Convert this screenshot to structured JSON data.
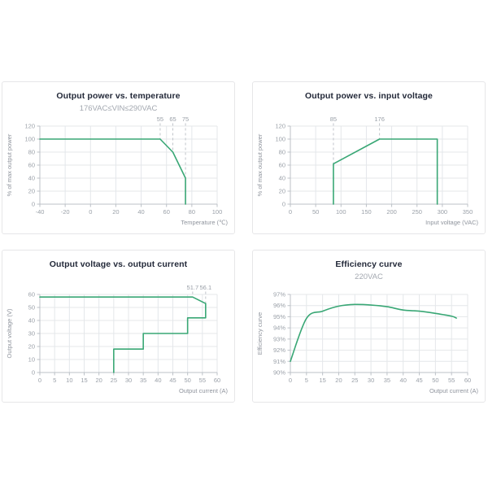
{
  "page": {
    "background": "#ffffff"
  },
  "theme": {
    "line_color": "#39a775",
    "grid_color": "#e4e7ea",
    "axis_color": "#bcc1c7",
    "tick_label_color": "#9aa0a8",
    "axis_name_color": "#8f949d",
    "marker_line_color": "#c0c4ca",
    "marker_label_color": "#9aa0a8",
    "title_color": "#232939",
    "subtitle_color": "#a3a8b0",
    "panel_border_color": "#e6e6e8",
    "panel_background": "#ffffff"
  },
  "chart_data": [
    {
      "type": "line",
      "title": "Output power vs. temperature",
      "subtitle": "176VAC≤VIN≤290VAC",
      "xlabel": "Temperature (℃)",
      "ylabel": "% of max output power",
      "x_axis": {
        "type": "value",
        "min": -40,
        "max": 100,
        "ticks": [
          -40,
          -20,
          0,
          20,
          40,
          60,
          80,
          100
        ]
      },
      "y_axis": {
        "min": 0,
        "max": 120,
        "ticks": [
          0,
          20,
          40,
          60,
          80,
          100,
          120
        ],
        "tick_suffix": ""
      },
      "grid": true,
      "legend": false,
      "series": [
        {
          "name": "derating-boundary",
          "smooth": false,
          "points": [
            [
              -40,
              100
            ],
            [
              55,
              100
            ],
            [
              65,
              80
            ],
            [
              75,
              40
            ],
            [
              75,
              0
            ]
          ]
        }
      ],
      "markers": [
        {
          "x": 55,
          "y": 100,
          "label": "55"
        },
        {
          "x": 65,
          "y": 80,
          "label": "65"
        },
        {
          "x": 75,
          "y": 40,
          "label": "75"
        }
      ]
    },
    {
      "type": "line",
      "title": "Output power vs. input voltage",
      "subtitle": "",
      "xlabel": "Input voltage (VAC)",
      "ylabel": "% of max output power",
      "x_axis": {
        "type": "value",
        "min": 0,
        "max": 350,
        "ticks": [
          0,
          50,
          100,
          150,
          200,
          250,
          300,
          350
        ]
      },
      "y_axis": {
        "min": 0,
        "max": 120,
        "ticks": [
          0,
          20,
          40,
          60,
          80,
          100,
          120
        ],
        "tick_suffix": ""
      },
      "grid": true,
      "legend": false,
      "series": [
        {
          "name": "derating-boundary",
          "smooth": false,
          "points": [
            [
              85,
              0
            ],
            [
              85,
              62
            ],
            [
              176,
              100
            ],
            [
              290,
              100
            ],
            [
              290,
              0
            ]
          ]
        }
      ],
      "markers": [
        {
          "x": 85,
          "y": 62,
          "label": "85"
        },
        {
          "x": 176,
          "y": 100,
          "label": "176"
        }
      ]
    },
    {
      "type": "line",
      "title": "Output voltage vs. output current",
      "subtitle": "",
      "xlabel": "Output current (A)",
      "ylabel": "Output voltage (V)",
      "x_axis": {
        "type": "value",
        "min": 0,
        "max": 60,
        "ticks": [
          0,
          5,
          10,
          15,
          20,
          25,
          30,
          35,
          40,
          45,
          50,
          55,
          60
        ]
      },
      "y_axis": {
        "min": 0,
        "max": 60,
        "ticks": [
          0,
          10,
          20,
          30,
          40,
          50,
          60
        ],
        "tick_suffix": ""
      },
      "grid": true,
      "legend": false,
      "series": [
        {
          "name": "operating-region-boundary",
          "smooth": false,
          "points": [
            [
              0,
              58
            ],
            [
              51.7,
              58
            ],
            [
              56.1,
              53
            ],
            [
              56.1,
              42
            ],
            [
              50,
              42
            ],
            [
              50,
              30
            ],
            [
              35,
              30
            ],
            [
              35,
              18
            ],
            [
              25,
              18
            ],
            [
              25,
              0
            ]
          ]
        }
      ],
      "markers": [
        {
          "x": 51.7,
          "y": 58,
          "label": "51.7"
        },
        {
          "x": 56.1,
          "y": 53,
          "label": "56.1"
        }
      ]
    },
    {
      "type": "line",
      "title": "Efficiency curve",
      "subtitle": "220VAC",
      "xlabel": "Output current (A)",
      "ylabel": "Efficiency curve",
      "x_axis": {
        "type": "category",
        "labels": [
          "0",
          "5",
          "15",
          "20",
          "25",
          "30",
          "35",
          "40",
          "45",
          "50",
          "55",
          "60"
        ]
      },
      "y_axis": {
        "min": 90,
        "max": 97,
        "ticks": [
          90,
          91,
          92,
          93,
          94,
          95,
          96,
          97
        ],
        "tick_suffix": "%"
      },
      "grid": true,
      "legend": false,
      "series": [
        {
          "name": "efficiency-220vac",
          "smooth": true,
          "points": [
            [
              0,
              91.0
            ],
            [
              1,
              94.85
            ],
            [
              2,
              95.5
            ],
            [
              3,
              95.95
            ],
            [
              4,
              96.1
            ],
            [
              5,
              96.05
            ],
            [
              6,
              95.9
            ],
            [
              7,
              95.6
            ],
            [
              8,
              95.5
            ],
            [
              9,
              95.3
            ],
            [
              10,
              95.05
            ],
            [
              10.3,
              94.88
            ]
          ]
        }
      ],
      "markers": []
    }
  ]
}
